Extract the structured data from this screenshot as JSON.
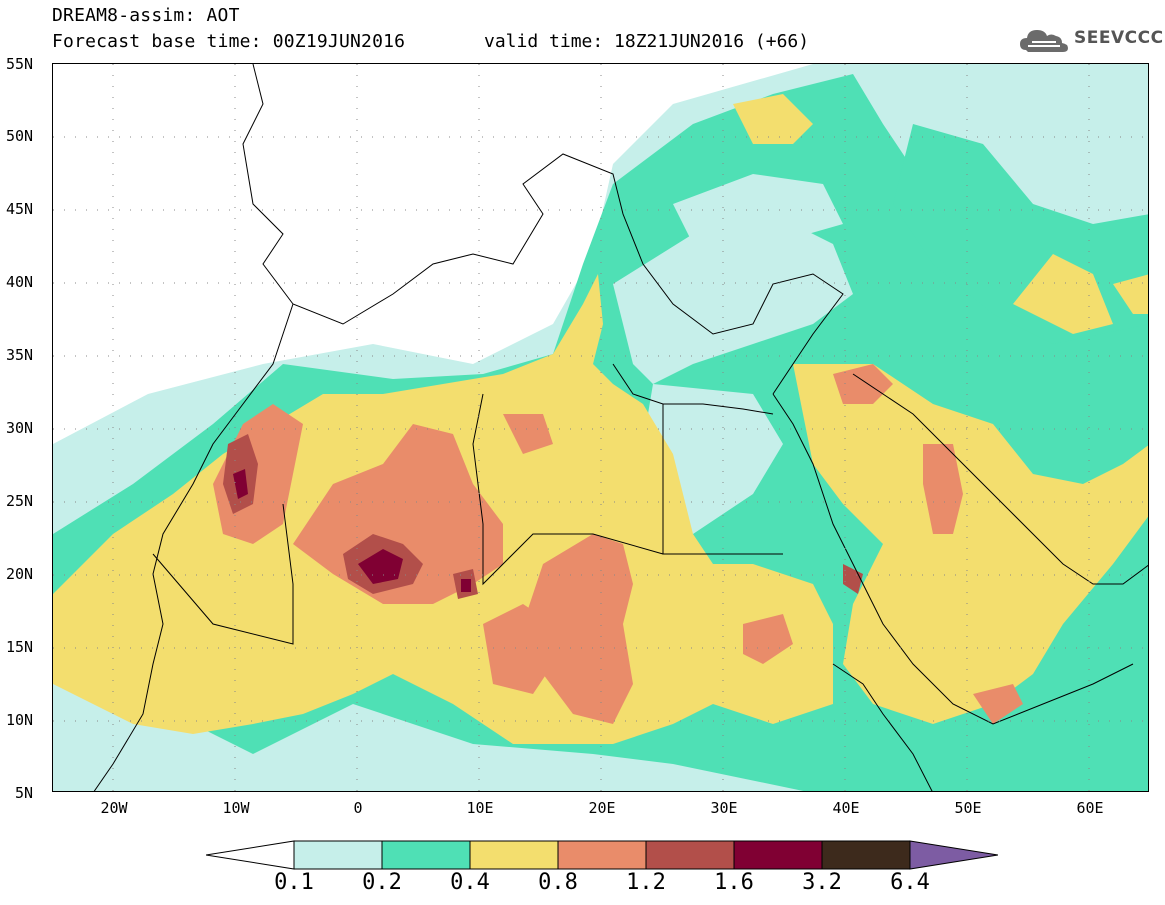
{
  "header": {
    "title": "DREAM8-assim: AOT",
    "base_time": "Forecast base time: 00Z19JUN2016",
    "valid_time": "valid time: 18Z21JUN2016 (+66)",
    "logo_text": "SEEVCCC"
  },
  "map": {
    "lat_labels": [
      "55N",
      "50N",
      "45N",
      "40N",
      "35N",
      "30N",
      "25N",
      "20N",
      "15N",
      "10N",
      "5N"
    ],
    "lon_labels": [
      "20W",
      "10W",
      "0",
      "10E",
      "20E",
      "30E",
      "40E",
      "50E",
      "60E"
    ],
    "lon_range": [
      -25,
      65
    ],
    "lat_range": [
      5,
      55
    ],
    "ocean_color": "#ffffff",
    "land_outline_color": "#000000"
  },
  "legend": {
    "thresholds": [
      "0.1",
      "0.2",
      "0.4",
      "0.8",
      "1.2",
      "1.6",
      "3.2",
      "6.4"
    ],
    "colors": [
      "#ffffff",
      "#c6efea",
      "#4fe0b5",
      "#f3de6e",
      "#e98c6a",
      "#b24f4a",
      "#800033",
      "#3d2a1c",
      "#7d5ca3"
    ]
  }
}
